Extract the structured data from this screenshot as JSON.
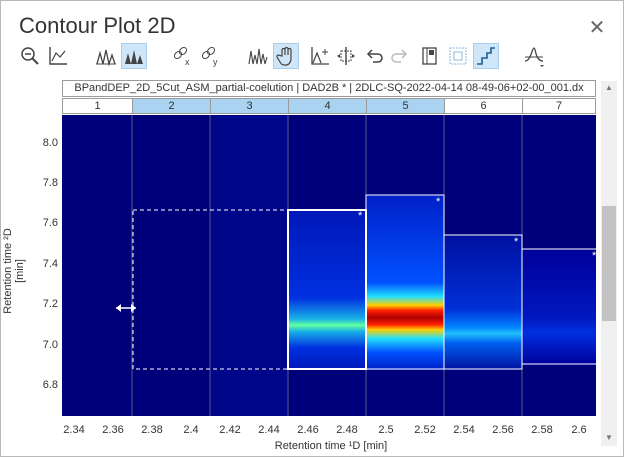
{
  "window": {
    "title": "Contour Plot 2D",
    "close_icon": "close-icon"
  },
  "toolbar": {
    "icons": [
      "zoom-out-icon",
      "axis-chart-icon",
      "peaks-outline-icon",
      "peaks-filled-icon",
      "link-x-icon",
      "link-y-icon",
      "spectrum-icon",
      "hand-pan-icon",
      "add-peak-icon",
      "split-icon",
      "undo-icon",
      "redo-icon",
      "book-icon",
      "fraction-grid-icon",
      "step-icon",
      "baseline-icon"
    ]
  },
  "plot": {
    "file_label": "BPandDEP_2D_5Cut_ASM_partial-coelution | DAD2B * | 2DLC-SQ-2022-04-14 08-49-06+02-00_001.dx",
    "fractions": [
      "1",
      "2",
      "3",
      "4",
      "5",
      "6",
      "7"
    ],
    "selected_fractions": [
      "2",
      "3",
      "4",
      "5"
    ],
    "y_ticks": [
      "8.0",
      "7.8",
      "7.6",
      "7.4",
      "7.2",
      "7.0",
      "6.8"
    ],
    "x_ticks": [
      "2.34",
      "2.36",
      "2.38",
      "2.4",
      "2.42",
      "2.44",
      "2.46",
      "2.48",
      "2.5",
      "2.52",
      "2.54",
      "2.56",
      "2.58",
      "2.6"
    ],
    "y_axis_title": "Retention time ²D [min]",
    "x_axis_title": "Retention time ¹D [min]",
    "star": "*",
    "colors": {
      "background": "#00007a",
      "hot": "#b00000"
    }
  }
}
